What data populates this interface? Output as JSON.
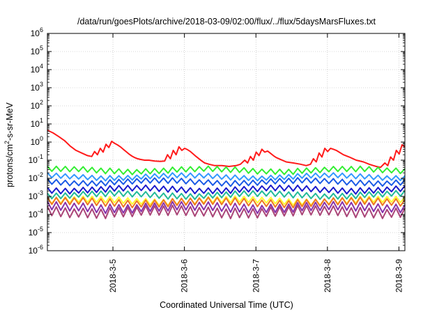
{
  "chart_data": {
    "type": "line",
    "title": "/data/run/goesPlots/archive/2018-03-09/02:00/flux/../flux/5daysMarsFluxes.txt",
    "xlabel": "Coordinated Universal Time (UTC)",
    "ylabel": {
      "prefix": "protons/cm",
      "sup": "2",
      "suffix": "-s-sr-MeV"
    },
    "y_scale": "log",
    "ylim": [
      1e-06,
      1000000.0
    ],
    "y_ticks": [
      {
        "exp": -6,
        "base": "10",
        "sup": "-6"
      },
      {
        "exp": -5,
        "base": "10",
        "sup": "-5"
      },
      {
        "exp": -4,
        "base": "10",
        "sup": "-4"
      },
      {
        "exp": -3,
        "base": "10",
        "sup": "-3"
      },
      {
        "exp": -2,
        "base": "10",
        "sup": "-2"
      },
      {
        "exp": -1,
        "base": "10",
        "sup": "-1"
      },
      {
        "exp": 0,
        "base": "10",
        "sup": "0"
      },
      {
        "exp": 1,
        "base": "10",
        "sup": "1"
      },
      {
        "exp": 2,
        "base": "10",
        "sup": "2"
      },
      {
        "exp": 3,
        "base": "10",
        "sup": "3"
      },
      {
        "exp": 4,
        "base": "10",
        "sup": "4"
      },
      {
        "exp": 5,
        "base": "10",
        "sup": "5"
      },
      {
        "exp": 6,
        "base": "10",
        "sup": "6"
      }
    ],
    "xlim": [
      "2018-03-04 02:00",
      "2018-03-09 02:00"
    ],
    "x_ticks": [
      {
        "label": "2018-3-5",
        "day": 1
      },
      {
        "label": "2018-3-6",
        "day": 2
      },
      {
        "label": "2018-3-7",
        "day": 3
      },
      {
        "label": "2018-3-8",
        "day": 4
      },
      {
        "label": "2018-3-9",
        "day": 5
      }
    ],
    "grid": true,
    "legend": "none",
    "series": [
      {
        "color": "#ff1a1a",
        "days": [
          0.0,
          0.08,
          0.16,
          0.24,
          0.32,
          0.4,
          0.48,
          0.56,
          0.62,
          0.66,
          0.7,
          0.74,
          0.78,
          0.82,
          0.86,
          0.9,
          0.94,
          0.98,
          1.02,
          1.06,
          1.1,
          1.14,
          1.18,
          1.22,
          1.26,
          1.3,
          1.36,
          1.42,
          1.5,
          1.58,
          1.64,
          1.68,
          1.72,
          1.76,
          1.8,
          1.84,
          1.88,
          1.92,
          1.96,
          2.0,
          2.04,
          2.08,
          2.12,
          2.16,
          2.2,
          2.26,
          2.34,
          2.44,
          2.54,
          2.64,
          2.7,
          2.76,
          2.8,
          2.84,
          2.88,
          2.92,
          2.96,
          3.0,
          3.04,
          3.08,
          3.12,
          3.16,
          3.2,
          3.26,
          3.34,
          3.44,
          3.54,
          3.62,
          3.68,
          3.72,
          3.76,
          3.8,
          3.84,
          3.88,
          3.92,
          3.96,
          4.0,
          4.04,
          4.08,
          4.14,
          4.22,
          4.32,
          4.42,
          4.5,
          4.56,
          4.6,
          4.66,
          4.72,
          4.76,
          4.8,
          4.84,
          4.88,
          4.92,
          4.96,
          5.0
        ],
        "values": [
          4.5,
          3.2,
          2.0,
          1.2,
          0.6,
          0.35,
          0.25,
          0.18,
          0.16,
          0.3,
          0.2,
          0.45,
          0.28,
          0.75,
          0.5,
          1.1,
          0.85,
          0.7,
          0.55,
          0.4,
          0.3,
          0.22,
          0.17,
          0.14,
          0.12,
          0.11,
          0.1,
          0.1,
          0.09,
          0.085,
          0.09,
          0.2,
          0.12,
          0.35,
          0.2,
          0.55,
          0.35,
          0.45,
          0.38,
          0.3,
          0.22,
          0.16,
          0.12,
          0.09,
          0.07,
          0.06,
          0.05,
          0.05,
          0.045,
          0.05,
          0.06,
          0.1,
          0.07,
          0.16,
          0.1,
          0.28,
          0.18,
          0.4,
          0.28,
          0.32,
          0.24,
          0.18,
          0.14,
          0.11,
          0.08,
          0.07,
          0.06,
          0.05,
          0.06,
          0.12,
          0.08,
          0.25,
          0.15,
          0.45,
          0.3,
          0.45,
          0.4,
          0.35,
          0.28,
          0.2,
          0.15,
          0.1,
          0.08,
          0.06,
          0.05,
          0.045,
          0.04,
          0.07,
          0.05,
          0.15,
          0.1,
          0.35,
          0.22,
          0.7,
          0.55
        ]
      },
      {
        "color": "#33ee33",
        "base": 0.021,
        "amp": 1.9,
        "decay": 0.012
      },
      {
        "color": "#3399ff",
        "base": 0.0095,
        "amp": 1.8,
        "decay": 0.01
      },
      {
        "color": "#1a5ae6",
        "base": 0.0048,
        "amp": 1.9,
        "decay": 0.011
      },
      {
        "color": "#1a1acc",
        "base": 0.0018,
        "amp": 2.0,
        "decay": 0.012
      },
      {
        "color": "#22bb99",
        "base": 0.0009,
        "amp": 2.0,
        "decay": 0.013
      },
      {
        "color": "#ffff33",
        "base": 0.00042,
        "amp": 2.1,
        "decay": 0.012
      },
      {
        "color": "#ee7722",
        "base": 0.00032,
        "amp": 2.4,
        "decay": 0.015
      },
      {
        "color": "#8833aa",
        "base": 0.00016,
        "amp": 2.8,
        "decay": 0.02
      },
      {
        "color": "#aa4477",
        "base": 8.5e-05,
        "amp": 3.2,
        "decay": 0.022
      }
    ]
  }
}
